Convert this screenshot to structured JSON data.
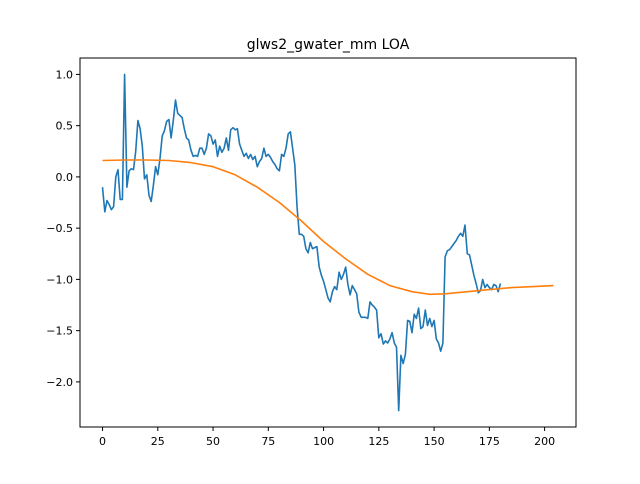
{
  "chart_data": {
    "type": "line",
    "title": "glws2_gwater_mm LOA",
    "xlabel": "",
    "ylabel": "",
    "xlim": [
      -10.2,
      214.2
    ],
    "ylim": [
      -2.44,
      1.16
    ],
    "xticks": [
      0,
      25,
      50,
      75,
      100,
      125,
      150,
      175,
      200
    ],
    "yticks": [
      1.0,
      0.5,
      0.0,
      -0.5,
      -1.0,
      -1.5,
      -2.0
    ],
    "ytick_labels": [
      "1.0",
      "0.5",
      "0.0",
      "−0.5",
      "−1.0",
      "−1.5",
      "−2.0"
    ],
    "grid": false,
    "legend": "none",
    "series": [
      {
        "color": "#1f77b4",
        "points": [
          [
            0,
            -0.1
          ],
          [
            1,
            -0.34
          ],
          [
            2,
            -0.23
          ],
          [
            3,
            -0.27
          ],
          [
            4,
            -0.32
          ],
          [
            5,
            -0.29
          ],
          [
            6,
            0.0
          ],
          [
            7,
            0.07
          ],
          [
            8,
            -0.22
          ],
          [
            9,
            -0.22
          ],
          [
            10,
            1.0
          ],
          [
            11,
            -0.1
          ],
          [
            12,
            0.06
          ],
          [
            13,
            0.08
          ],
          [
            14,
            0.07
          ],
          [
            15,
            0.25
          ],
          [
            16,
            0.55
          ],
          [
            17,
            0.47
          ],
          [
            18,
            0.3
          ],
          [
            19,
            -0.02
          ],
          [
            20,
            0.02
          ],
          [
            21,
            -0.18
          ],
          [
            22,
            -0.24
          ],
          [
            23,
            -0.08
          ],
          [
            24,
            0.1
          ],
          [
            25,
            0.02
          ],
          [
            26,
            0.18
          ],
          [
            27,
            0.4
          ],
          [
            28,
            0.45
          ],
          [
            29,
            0.54
          ],
          [
            30,
            0.56
          ],
          [
            31,
            0.38
          ],
          [
            32,
            0.55
          ],
          [
            33,
            0.75
          ],
          [
            34,
            0.62
          ],
          [
            35,
            0.6
          ],
          [
            36,
            0.58
          ],
          [
            37,
            0.47
          ],
          [
            38,
            0.38
          ],
          [
            39,
            0.36
          ],
          [
            40,
            0.26
          ],
          [
            41,
            0.2
          ],
          [
            42,
            0.21
          ],
          [
            43,
            0.2
          ],
          [
            44,
            0.28
          ],
          [
            45,
            0.28
          ],
          [
            46,
            0.22
          ],
          [
            47,
            0.28
          ],
          [
            48,
            0.42
          ],
          [
            49,
            0.4
          ],
          [
            50,
            0.32
          ],
          [
            51,
            0.36
          ],
          [
            52,
            0.2
          ],
          [
            53,
            0.3
          ],
          [
            54,
            0.24
          ],
          [
            55,
            0.28
          ],
          [
            56,
            0.38
          ],
          [
            57,
            0.26
          ],
          [
            58,
            0.46
          ],
          [
            59,
            0.48
          ],
          [
            60,
            0.46
          ],
          [
            61,
            0.47
          ],
          [
            62,
            0.32
          ],
          [
            63,
            0.26
          ],
          [
            64,
            0.2
          ],
          [
            65,
            0.23
          ],
          [
            66,
            0.18
          ],
          [
            67,
            0.22
          ],
          [
            68,
            0.17
          ],
          [
            69,
            0.2
          ],
          [
            70,
            0.1
          ],
          [
            71,
            0.15
          ],
          [
            72,
            0.18
          ],
          [
            73,
            0.28
          ],
          [
            74,
            0.2
          ],
          [
            75,
            0.22
          ],
          [
            76,
            0.19
          ],
          [
            77,
            0.15
          ],
          [
            78,
            0.12
          ],
          [
            79,
            0.08
          ],
          [
            80,
            0.06
          ],
          [
            81,
            0.22
          ],
          [
            82,
            0.2
          ],
          [
            83,
            0.28
          ],
          [
            84,
            0.42
          ],
          [
            85,
            0.44
          ],
          [
            86,
            0.28
          ],
          [
            87,
            0.12
          ],
          [
            88,
            -0.3
          ],
          [
            89,
            -0.56
          ],
          [
            90,
            -0.56
          ],
          [
            91,
            -0.58
          ],
          [
            92,
            -0.7
          ],
          [
            93,
            -0.74
          ],
          [
            94,
            -0.64
          ],
          [
            95,
            -0.7
          ],
          [
            96,
            -0.69
          ],
          [
            97,
            -0.68
          ],
          [
            98,
            -0.88
          ],
          [
            99,
            -0.96
          ],
          [
            100,
            -1.02
          ],
          [
            101,
            -1.1
          ],
          [
            102,
            -1.18
          ],
          [
            103,
            -1.22
          ],
          [
            104,
            -1.12
          ],
          [
            105,
            -1.07
          ],
          [
            106,
            -1.1
          ],
          [
            107,
            -0.93
          ],
          [
            108,
            -1.0
          ],
          [
            109,
            -0.95
          ],
          [
            110,
            -0.88
          ],
          [
            111,
            -1.05
          ],
          [
            112,
            -1.15
          ],
          [
            113,
            -1.06
          ],
          [
            114,
            -1.1
          ],
          [
            115,
            -1.14
          ],
          [
            116,
            -1.32
          ],
          [
            117,
            -1.37
          ],
          [
            118,
            -1.37
          ],
          [
            119,
            -1.37
          ],
          [
            120,
            -1.38
          ],
          [
            121,
            -1.22
          ],
          [
            122,
            -1.25
          ],
          [
            123,
            -1.27
          ],
          [
            124,
            -1.3
          ],
          [
            125,
            -1.57
          ],
          [
            126,
            -1.53
          ],
          [
            127,
            -1.63
          ],
          [
            128,
            -1.6
          ],
          [
            129,
            -1.62
          ],
          [
            130,
            -1.58
          ],
          [
            131,
            -1.52
          ],
          [
            132,
            -1.62
          ],
          [
            133,
            -1.66
          ],
          [
            134,
            -2.28
          ],
          [
            135,
            -1.74
          ],
          [
            136,
            -1.82
          ],
          [
            137,
            -1.73
          ],
          [
            138,
            -1.4
          ],
          [
            139,
            -1.41
          ],
          [
            140,
            -1.52
          ],
          [
            141,
            -1.34
          ],
          [
            142,
            -1.38
          ],
          [
            143,
            -1.28
          ],
          [
            144,
            -1.48
          ],
          [
            145,
            -1.46
          ],
          [
            146,
            -1.3
          ],
          [
            147,
            -1.45
          ],
          [
            148,
            -1.38
          ],
          [
            149,
            -1.46
          ],
          [
            150,
            -1.4
          ],
          [
            151,
            -1.58
          ],
          [
            152,
            -1.62
          ],
          [
            153,
            -1.7
          ],
          [
            154,
            -1.62
          ],
          [
            155,
            -0.78
          ],
          [
            156,
            -0.72
          ],
          [
            157,
            -0.71
          ],
          [
            158,
            -0.68
          ],
          [
            159,
            -0.65
          ],
          [
            160,
            -0.62
          ],
          [
            161,
            -0.58
          ],
          [
            162,
            -0.55
          ],
          [
            163,
            -0.58
          ],
          [
            164,
            -0.47
          ],
          [
            165,
            -0.75
          ],
          [
            166,
            -0.76
          ],
          [
            167,
            -0.86
          ],
          [
            168,
            -0.96
          ],
          [
            169,
            -1.04
          ],
          [
            170,
            -1.13
          ],
          [
            171,
            -1.11
          ],
          [
            172,
            -1.0
          ],
          [
            173,
            -1.08
          ],
          [
            174,
            -1.05
          ],
          [
            175,
            -1.08
          ],
          [
            176,
            -1.1
          ],
          [
            177,
            -1.05
          ],
          [
            178,
            -1.06
          ],
          [
            179,
            -1.12
          ],
          [
            180,
            -1.04
          ]
        ]
      },
      {
        "color": "#ff7f0e",
        "points": [
          [
            0,
            0.16
          ],
          [
            10,
            0.165
          ],
          [
            20,
            0.165
          ],
          [
            30,
            0.16
          ],
          [
            40,
            0.14
          ],
          [
            50,
            0.1
          ],
          [
            60,
            0.02
          ],
          [
            70,
            -0.1
          ],
          [
            80,
            -0.25
          ],
          [
            90,
            -0.43
          ],
          [
            100,
            -0.63
          ],
          [
            110,
            -0.8
          ],
          [
            120,
            -0.95
          ],
          [
            130,
            -1.06
          ],
          [
            140,
            -1.12
          ],
          [
            148,
            -1.145
          ],
          [
            155,
            -1.14
          ],
          [
            165,
            -1.12
          ],
          [
            175,
            -1.1
          ],
          [
            185,
            -1.08
          ],
          [
            195,
            -1.07
          ],
          [
            204,
            -1.06
          ]
        ]
      }
    ]
  }
}
